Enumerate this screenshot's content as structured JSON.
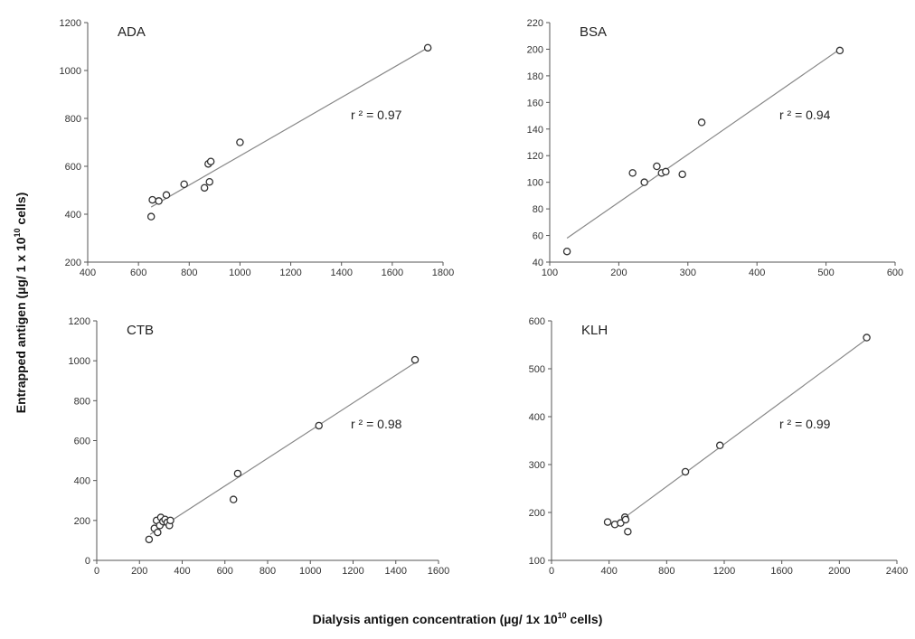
{
  "figure": {
    "ylabel_main": "Entrapped antigen (µg/ 1 x 10",
    "ylabel_sup": "10",
    "ylabel_tail": " cells)",
    "xlabel_main": "Dialysis antigen concentration (µg/ 1x 10",
    "xlabel_sup": "10",
    "xlabel_tail": " cells)"
  },
  "chart_data": [
    {
      "type": "scatter",
      "panel": "ADA",
      "title": "ADA",
      "r2_text": "r ² = 0.97",
      "xlim": [
        400,
        1800
      ],
      "ylim": [
        200,
        1200
      ],
      "xticks": [
        400,
        600,
        800,
        1000,
        1200,
        1400,
        1600,
        1800
      ],
      "yticks": [
        200,
        400,
        600,
        800,
        1000,
        1200
      ],
      "points": [
        [
          650,
          390
        ],
        [
          655,
          460
        ],
        [
          680,
          455
        ],
        [
          710,
          480
        ],
        [
          780,
          525
        ],
        [
          860,
          510
        ],
        [
          880,
          535
        ],
        [
          875,
          610
        ],
        [
          885,
          620
        ],
        [
          1000,
          700
        ],
        [
          1740,
          1095
        ]
      ],
      "fit_line": [
        [
          650,
          430
        ],
        [
          1740,
          1095
        ]
      ]
    },
    {
      "type": "scatter",
      "panel": "BSA",
      "title": "BSA",
      "r2_text": "r ² = 0.94",
      "xlim": [
        100,
        600
      ],
      "ylim": [
        40,
        220
      ],
      "xticks": [
        100,
        200,
        300,
        400,
        500,
        600
      ],
      "yticks": [
        40,
        60,
        80,
        100,
        120,
        140,
        160,
        180,
        200,
        220
      ],
      "points": [
        [
          125,
          48
        ],
        [
          220,
          107
        ],
        [
          237,
          100
        ],
        [
          255,
          112
        ],
        [
          262,
          107
        ],
        [
          268,
          108
        ],
        [
          292,
          106
        ],
        [
          320,
          145
        ],
        [
          520,
          199
        ]
      ],
      "fit_line": [
        [
          125,
          58
        ],
        [
          520,
          200
        ]
      ]
    },
    {
      "type": "scatter",
      "panel": "CTB",
      "title": "CTB",
      "r2_text": "r ² = 0.98",
      "xlim": [
        0,
        1600
      ],
      "ylim": [
        0,
        1200
      ],
      "xticks": [
        0,
        200,
        400,
        600,
        800,
        1000,
        1200,
        1400,
        1600
      ],
      "yticks": [
        0,
        200,
        400,
        600,
        800,
        1000,
        1200
      ],
      "points": [
        [
          245,
          105
        ],
        [
          270,
          160
        ],
        [
          280,
          200
        ],
        [
          285,
          140
        ],
        [
          295,
          175
        ],
        [
          300,
          215
        ],
        [
          310,
          195
        ],
        [
          320,
          205
        ],
        [
          330,
          190
        ],
        [
          340,
          175
        ],
        [
          345,
          200
        ],
        [
          640,
          305
        ],
        [
          660,
          435
        ],
        [
          1040,
          675
        ],
        [
          1490,
          1005
        ]
      ],
      "fit_line": [
        [
          250,
          130
        ],
        [
          1490,
          990
        ]
      ]
    },
    {
      "type": "scatter",
      "panel": "KLH",
      "title": "KLH",
      "r2_text": "r ² = 0.99",
      "xlim": [
        0,
        2400
      ],
      "ylim": [
        100,
        600
      ],
      "xticks": [
        0,
        400,
        800,
        1200,
        1600,
        2000,
        2400
      ],
      "yticks": [
        100,
        200,
        300,
        400,
        500,
        600
      ],
      "points": [
        [
          390,
          180
        ],
        [
          440,
          175
        ],
        [
          480,
          178
        ],
        [
          510,
          190
        ],
        [
          515,
          185
        ],
        [
          530,
          160
        ],
        [
          930,
          285
        ],
        [
          1170,
          340
        ],
        [
          2190,
          565
        ]
      ],
      "fit_line": [
        [
          510,
          190
        ],
        [
          2190,
          562
        ]
      ]
    }
  ]
}
